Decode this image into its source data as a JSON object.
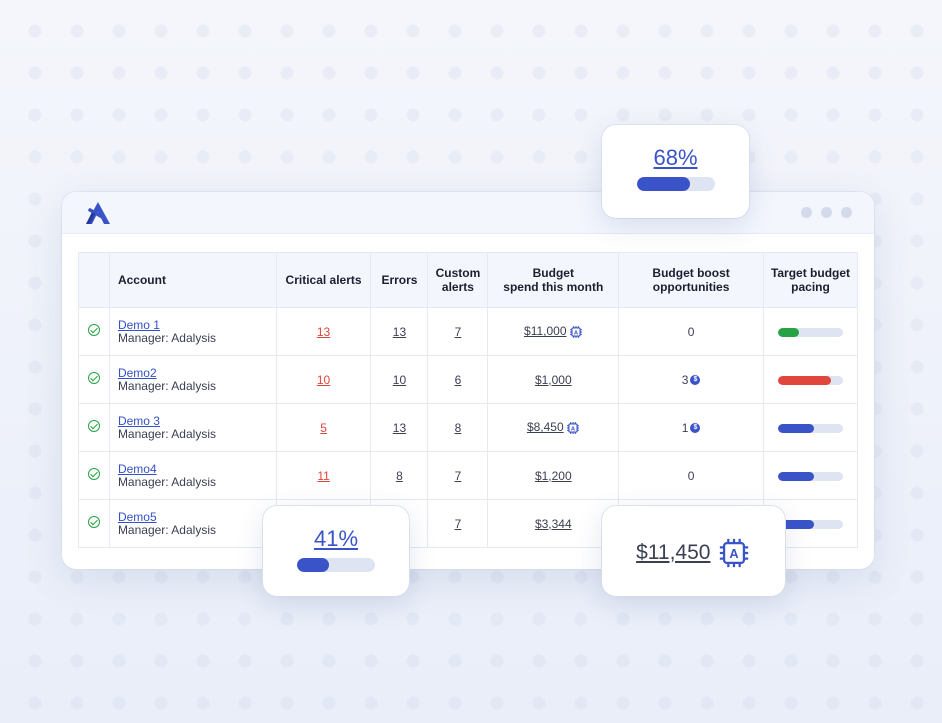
{
  "colors": {
    "accent": "#3a53c9",
    "critical": "#e0463c",
    "ok": "#27a244"
  },
  "table": {
    "headers": {
      "account": "Account",
      "critical": "Critical alerts",
      "errors": "Errors",
      "custom_1": "Custom",
      "custom_2": "alerts",
      "budget_1": "Budget",
      "budget_2": "spend this month",
      "boost_1": "Budget boost",
      "boost_2": "opportunities",
      "pacing_1": "Target budget",
      "pacing_2": "pacing"
    },
    "rows": [
      {
        "name": "Demo 1",
        "manager": "Manager: Adalysis",
        "critical": "13",
        "errors": "13",
        "custom": "7",
        "budget": "$11,000",
        "boost": "0",
        "pacing_pct": 32,
        "pacing_color": "#27a244"
      },
      {
        "name": "Demo2",
        "manager": "Manager: Adalysis",
        "critical": "10",
        "errors": "10",
        "custom": "6",
        "budget": "$1,000",
        "boost": "3",
        "pacing_pct": 82,
        "pacing_color": "#e0463c"
      },
      {
        "name": "Demo 3",
        "manager": "Manager: Adalysis",
        "critical": "5",
        "errors": "13",
        "custom": "8",
        "budget": "$8,450",
        "boost": "1",
        "pacing_pct": 56,
        "pacing_color": "#3a53c9"
      },
      {
        "name": "Demo4",
        "manager": "Manager: Adalysis",
        "critical": "11",
        "errors": "8",
        "custom": "7",
        "budget": "$1,200",
        "boost": "0",
        "pacing_pct": 56,
        "pacing_color": "#3a53c9"
      },
      {
        "name": "Demo5",
        "manager": "Manager: Adalysis",
        "critical": "",
        "errors": "",
        "custom": "7",
        "budget": "$3,344",
        "boost": "",
        "pacing_pct": 56,
        "pacing_color": "#3a53c9"
      }
    ]
  },
  "cards": {
    "top": {
      "label": "68%",
      "pct": 68
    },
    "left": {
      "label": "41%",
      "pct": 41
    },
    "right": {
      "label": "$11,450"
    }
  }
}
